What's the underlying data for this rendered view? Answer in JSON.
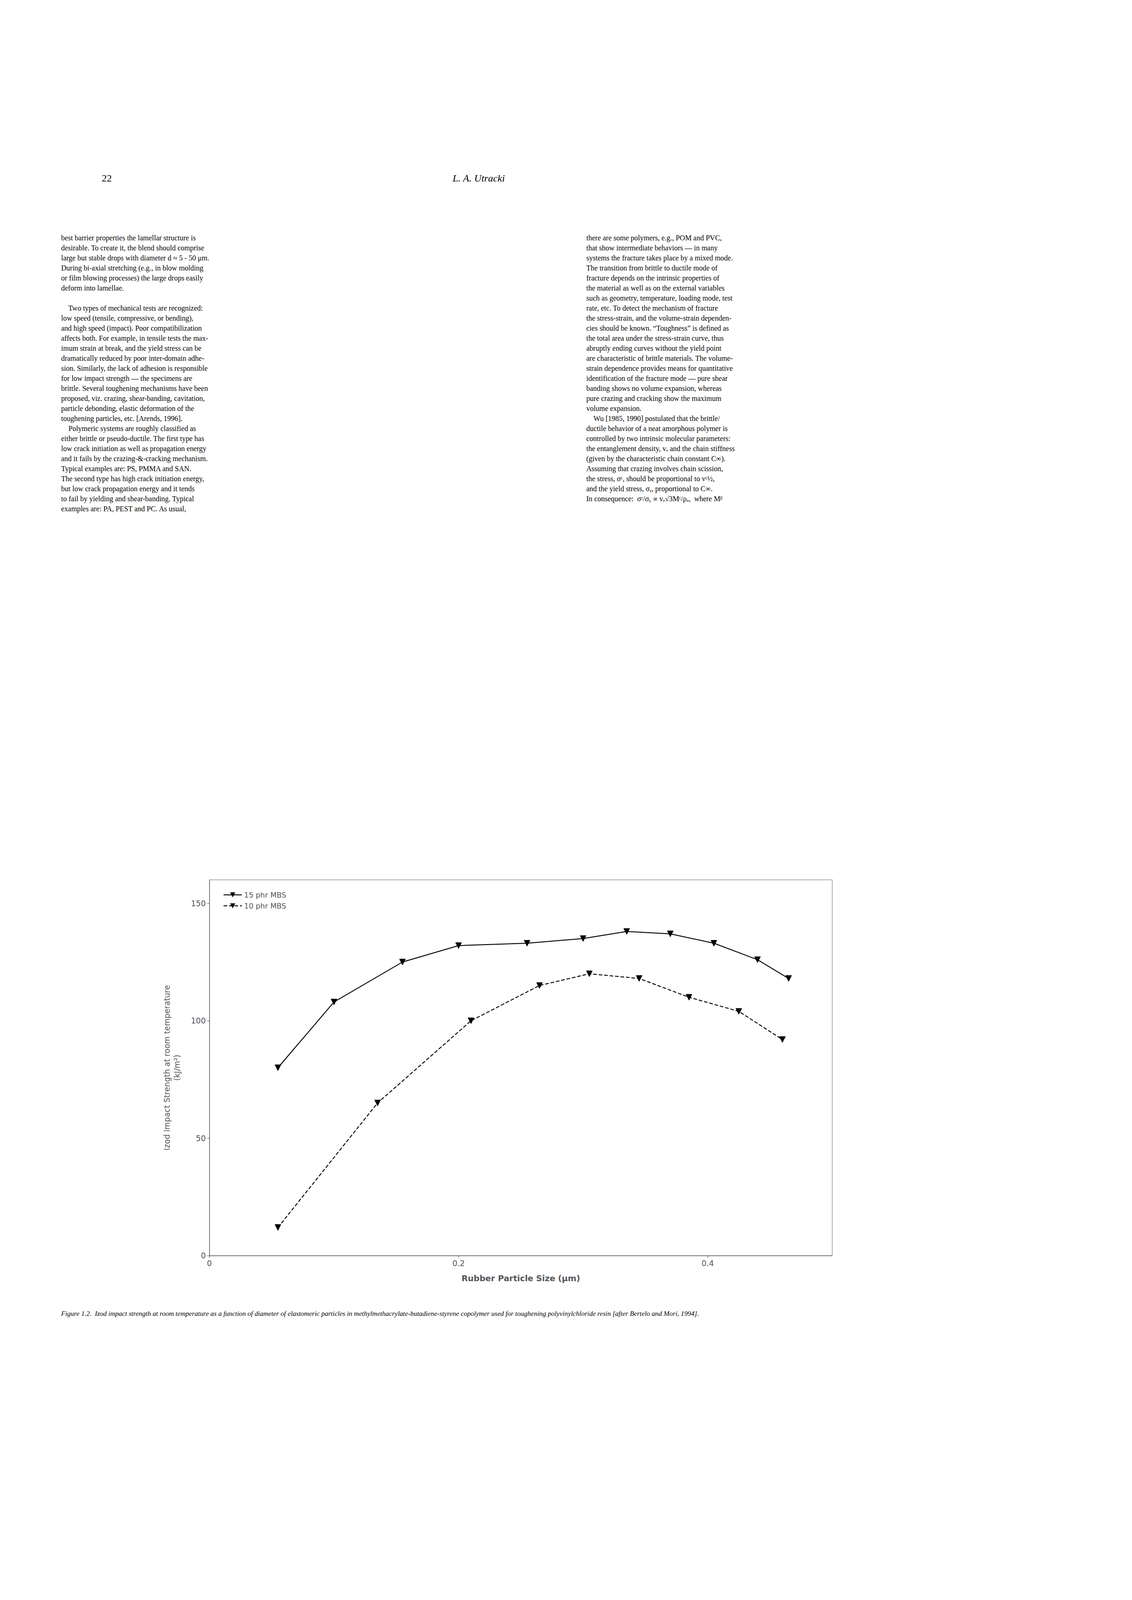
{
  "chart_data": {
    "type": "line",
    "xlabel": "Rubber Particle Size (μm)",
    "ylabel": "Izod Impact Strength at room temperature\n(kJ/m²)",
    "xlim": [
      0,
      0.5
    ],
    "ylim": [
      0,
      160
    ],
    "xticks": [
      0,
      0.2,
      0.4
    ],
    "yticks": [
      0,
      50,
      100,
      150
    ],
    "grid": false,
    "legend": "upper left",
    "series": [
      {
        "name": "15 phr MBS",
        "color": "#000000",
        "marker": "triangle_down",
        "line_style": "solid",
        "x": [
          0.055,
          0.1,
          0.155,
          0.2,
          0.255,
          0.3,
          0.335,
          0.37,
          0.405,
          0.44,
          0.465
        ],
        "values": [
          80,
          108,
          125,
          132,
          133,
          135,
          138,
          137,
          133,
          126,
          118
        ]
      },
      {
        "name": "10 phr MBS",
        "color": "#000000",
        "marker": "triangle_down",
        "line_style": "dashed",
        "x": [
          0.055,
          0.135,
          0.21,
          0.265,
          0.305,
          0.345,
          0.385,
          0.425,
          0.46
        ],
        "values": [
          12,
          65,
          100,
          115,
          120,
          118,
          110,
          104,
          92
        ]
      }
    ],
    "annotations": [
      "22",
      "L. A. Utracki",
      "best barrier properties the lamellar structure is\ndesirable. To create it, the blend should comprise\nlarge but stable drops with diameter d ≈ 5 - 50 μm.\nDuring bi-axial stretching (e.g., in blow molding\nor film blowing processes) the large drops easily\ndeform into lamellae.\n\n    Two types of mechanical tests are recognized:\nlow speed (tensile, compressive, or bending),\nand high speed (impact). Poor compatibilization\naffects both. For example, in tensile tests the max-\nimum strain at break, and the yield stress can be\ndramatically reduced by poor inter-domain adhe-\nsion. Similarly, the lack of adhesion is responsible\nfor low impact strength — the specimens are\nbrittle. Several toughening mechanisms have been\nproposed, viz. crazing, shear-banding, cavitation,\nparticle debonding, elastic deformation of the\ntoughening particles, etc. [Arends, 1996].\n    Polymeric systems are roughly classified as\neither brittle or pseudo-ductile. The first type has\nlow crack initiation as well as propagation energy\nand it fails by the crazing-&-cracking mechanism.\nTypical examples are: PS, PMMA and SAN.\nThe second type has high crack initiation energy,\nbut low crack propagation energy and it tends\nto fail by yielding and shear-banding. Typical\nexamples are: PA, PEST and PC. As usual,",
      "there are some polymers, e.g., POM and PVC,\nthat show intermediate behaviors — in many\nsystems the fracture takes place by a mixed mode.\nThe transition from brittle to ductile mode of\nfracture depends on the intrinsic properties of\nthe material as well as on the external variables\nsuch as geometry, temperature, loading mode, test\nrate, etc. To detect the mechanism of fracture\nthe stress-strain, and the volume-strain dependen-\ncies should be known. “Toughness” is defined as\nthe total area under the stress-strain curve, thus\nabruptly ending curves without the yield point\nare characteristic of brittle materials. The volume-\nstrain dependence provides means for quantitative\nidentification of the fracture mode — pure shear\nbanding shows no volume expansion, whereas\npure crazing and cracking show the maximum\nvolume expansion.\n    Wu [1985, 1990] postulated that the brittle/\nductile behavior of a neat amorphous polymer is\ncontrolled by two intrinsic molecular parameters:\nthe entanglement density, vₑ and the chain stiffness\n(given by the characteristic chain constant C∞).\nAssuming that crazing involves chain scission,\nthe stress, σᶜ, should be proportional to vᶜ½,\nand the yield stress, σᵧ, proportional to C∞.\nIn consequence:  σᶜ/σᵧ ∝ vₑ√3Mᶜ/ρₐ,  where Mᵝ",
      "Figure 1.2.  Izod impact strength at room temperature as a function of diameter of elastomeric particles in methylmethacrylate-butadiene-styrene copolymer used for toughening polyvinylchloride resin [after Bertelo and Mori, 1994]."
    ]
  }
}
